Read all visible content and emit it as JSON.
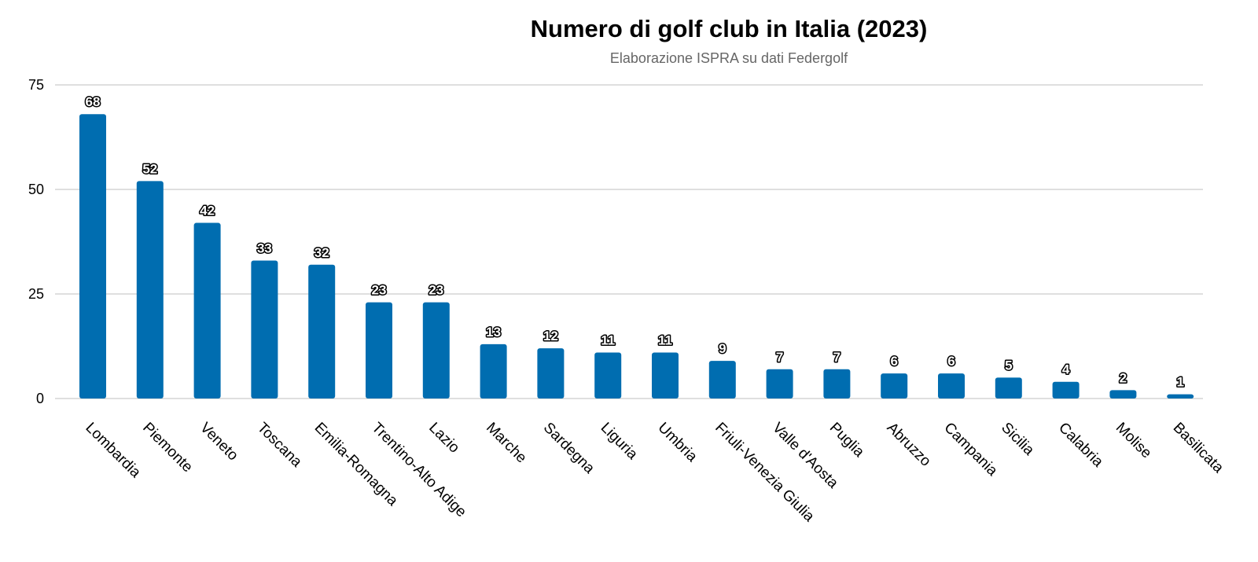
{
  "chart_data": {
    "type": "bar",
    "title": "Numero di golf club in Italia (2023)",
    "subtitle": "Elaborazione ISPRA su dati Federgolf",
    "xlabel": "",
    "ylabel": "",
    "ylim": [
      0,
      75
    ],
    "yticks": [
      "0",
      "25",
      "50",
      "75"
    ],
    "grid": true,
    "legend": "none",
    "color": "#006db0",
    "categories": [
      "Lombardia",
      "Piemonte",
      "Veneto",
      "Toscana",
      "Emilia-Romagna",
      "Trentino-Alto Adige",
      "Lazio",
      "Marche",
      "Sardegna",
      "Liguria",
      "Umbria",
      "Friuli-Venezia Giulia",
      "Valle d'Aosta",
      "Puglia",
      "Abruzzo",
      "Campania",
      "Sicilia",
      "Calabria",
      "Molise",
      "Basilicata"
    ],
    "values": [
      68,
      52,
      42,
      33,
      32,
      23,
      23,
      13,
      12,
      11,
      11,
      9,
      7,
      7,
      6,
      6,
      5,
      4,
      2,
      1
    ]
  }
}
